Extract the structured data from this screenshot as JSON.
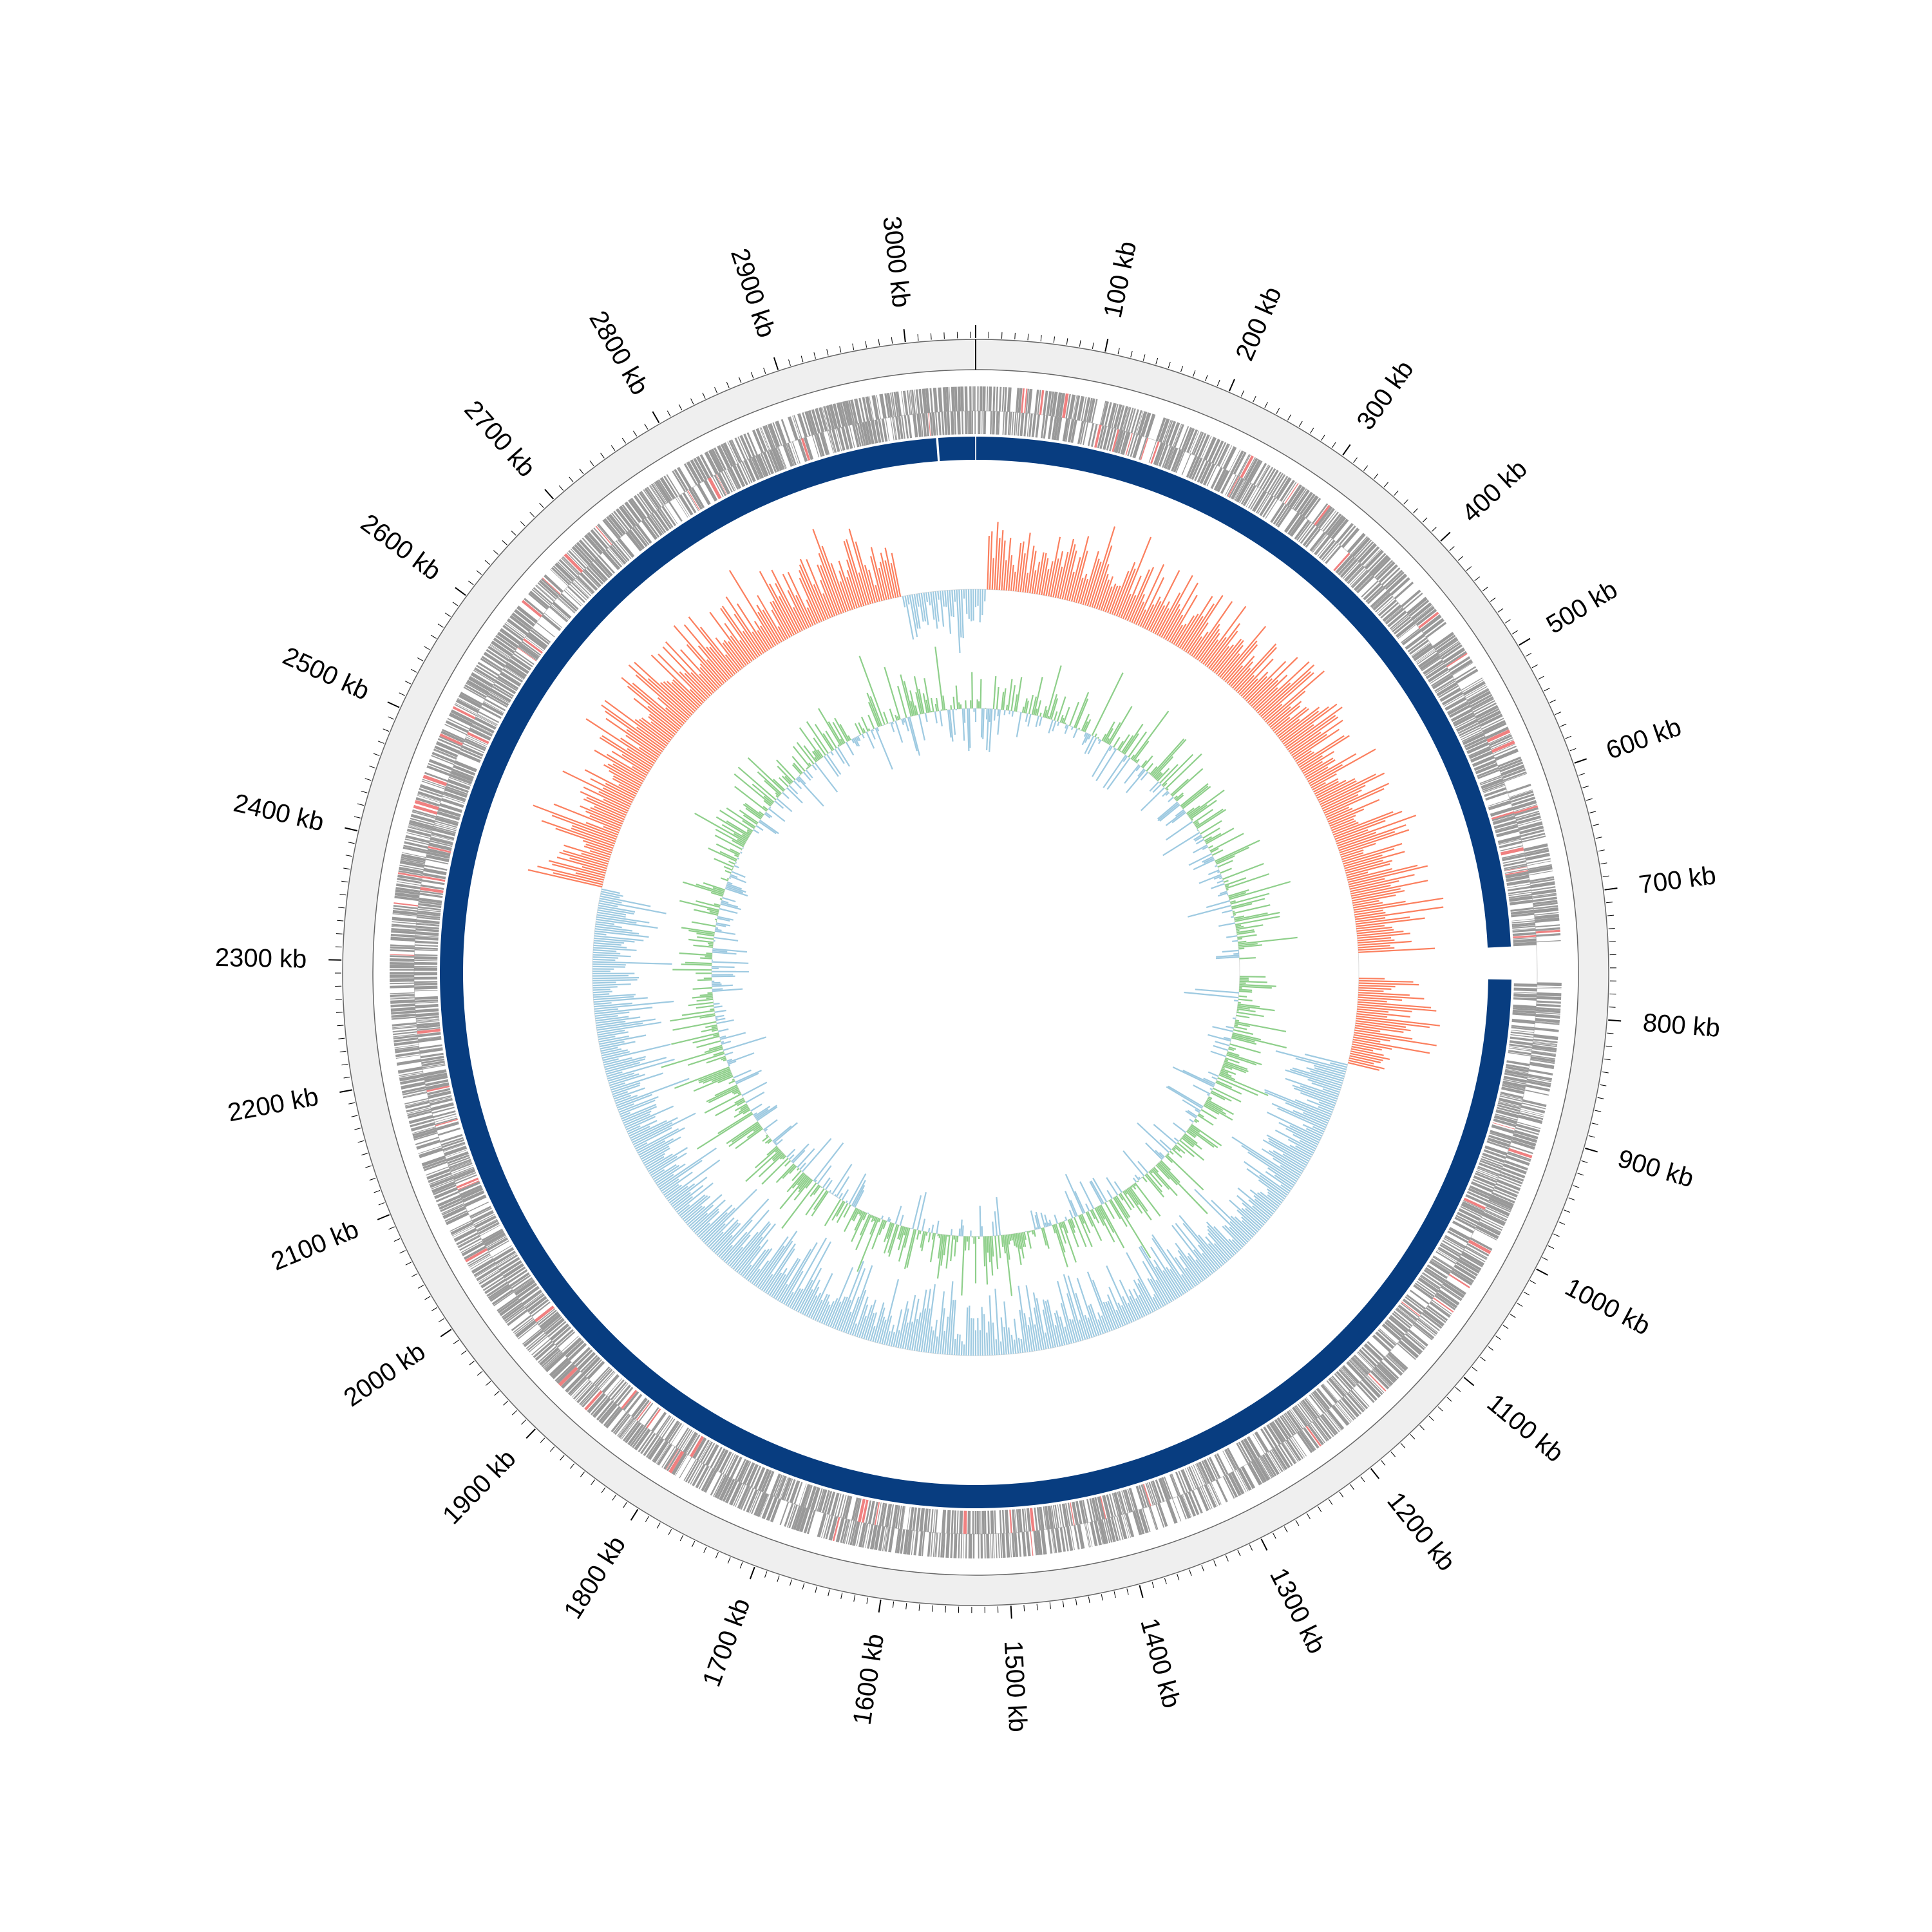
{
  "figure": {
    "type": "circular-genome-map",
    "unit": "kb",
    "genome_span_kb": 3054,
    "gap_start_kb": 740,
    "gap_end_kb": 770,
    "tick_labels": [
      "100 kb",
      "200 kb",
      "300 kb",
      "400 kb",
      "500 kb",
      "600 kb",
      "700 kb",
      "800 kb",
      "900 kb",
      "1000 kb",
      "1100 kb",
      "1200 kb",
      "1300 kb",
      "1400 kb",
      "1500 kb",
      "1600 kb",
      "1700 kb",
      "1800 kb",
      "1900 kb",
      "2000 kb",
      "2100 kb",
      "2200 kb",
      "2300 kb",
      "2400 kb",
      "2500 kb",
      "2600 kb",
      "2700 kb",
      "2800 kb",
      "2900 kb",
      "3000 kb"
    ]
  },
  "colors": {
    "background": "#ffffff",
    "ideogram_fill": "#efefef",
    "feature_gray": "#999999",
    "feature_red": "#f08080",
    "contig_band": "#083d80",
    "skew_positive": "#fb7f5e",
    "skew_negative": "#9ecae1",
    "skew_line": "#6aaed6",
    "gc_positive": "#8ecf8a",
    "gc_negative": "#9ecae1",
    "axis": "#000000"
  }
}
